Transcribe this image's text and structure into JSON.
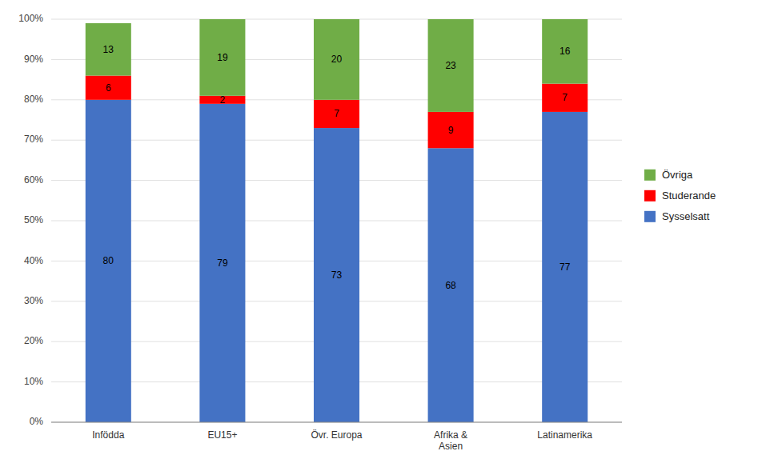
{
  "chart_data": {
    "type": "bar",
    "stacked": true,
    "data_labels": true,
    "grid": true,
    "legend": "right",
    "categories": [
      "Infödda",
      "EU15+",
      "Övr. Europa",
      "Afrika &\nAsien",
      "Latinamerika"
    ],
    "series": [
      {
        "name": "Sysselsatt",
        "color": "#4472C4",
        "values": [
          80,
          79,
          73,
          68,
          77
        ]
      },
      {
        "name": "Studerande",
        "color": "#FF0000",
        "values": [
          6,
          2,
          7,
          9,
          7
        ]
      },
      {
        "name": "Övriga",
        "color": "#70AD47",
        "values": [
          13,
          19,
          20,
          23,
          16
        ]
      }
    ],
    "ylim": [
      0,
      100
    ],
    "yticks": [
      {
        "value": 0,
        "label": "0%"
      },
      {
        "value": 10,
        "label": "10%"
      },
      {
        "value": 20,
        "label": "20%"
      },
      {
        "value": 30,
        "label": "30%"
      },
      {
        "value": 40,
        "label": "40%"
      },
      {
        "value": 50,
        "label": "50%"
      },
      {
        "value": 60,
        "label": "60%"
      },
      {
        "value": 70,
        "label": "70%"
      },
      {
        "value": 80,
        "label": "80%"
      },
      {
        "value": 90,
        "label": "90%"
      },
      {
        "value": 100,
        "label": "100%"
      }
    ]
  }
}
